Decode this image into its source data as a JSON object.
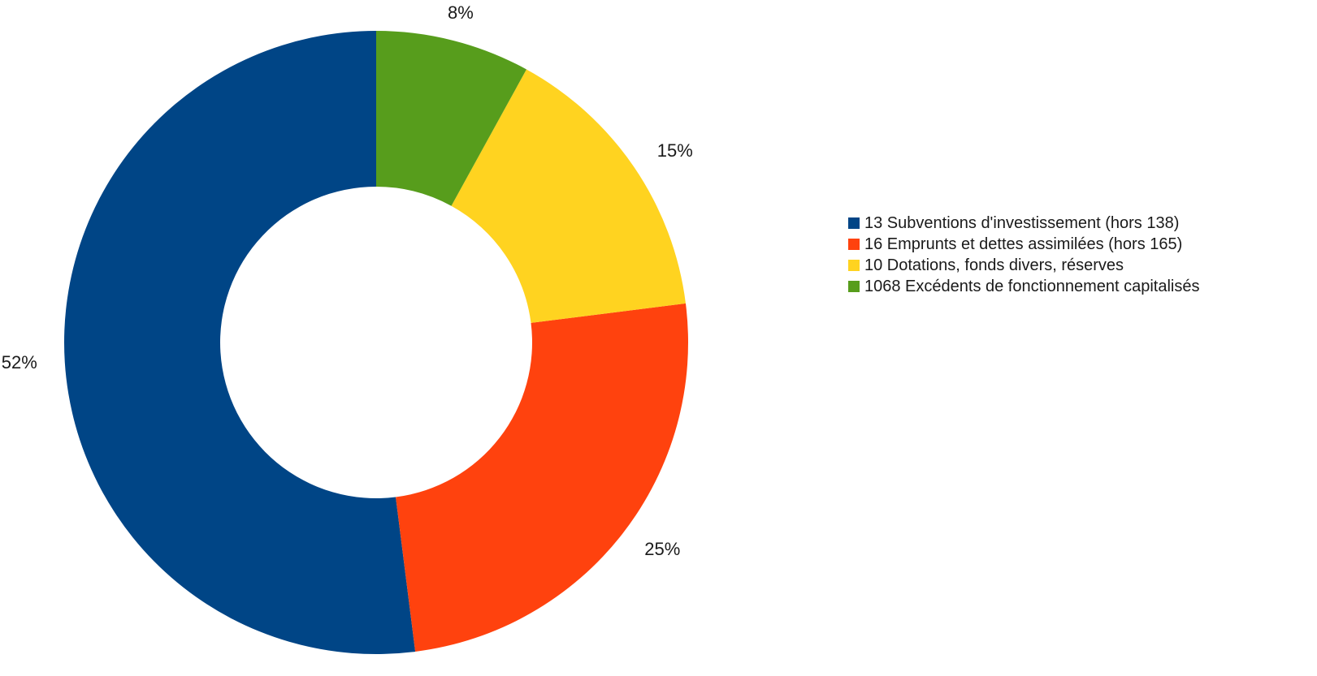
{
  "chart_data": {
    "type": "pie",
    "donut": true,
    "title": "",
    "legend_position": "right",
    "series": [
      {
        "name": "13 Subventions d'investissement (hors 138)",
        "value": 52,
        "label": "52%",
        "color": "#004586"
      },
      {
        "name": "16 Emprunts et dettes assimilées (hors 165)",
        "value": 25,
        "label": "25%",
        "color": "#ff420e"
      },
      {
        "name": "10 Dotations, fonds divers, réserves",
        "value": 15,
        "label": "15%",
        "color": "#ffd320"
      },
      {
        "name": "1068 Excédents de fonctionnement capitalisés",
        "value": 8,
        "label": "8%",
        "color": "#579d1c"
      }
    ]
  }
}
